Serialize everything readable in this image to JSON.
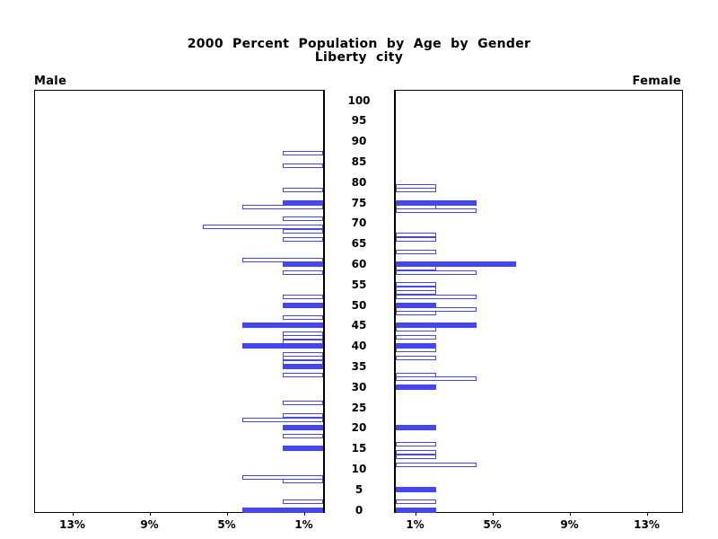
{
  "chart_data": {
    "type": "bar",
    "subtype": "population-pyramid",
    "title": "2000 Percent Population by Age by Gender",
    "subtitle": "Liberty city",
    "left_side_label": "Male",
    "right_side_label": "Female",
    "age_axis": {
      "min": 0,
      "max": 100,
      "step": 5,
      "tick_labels": [
        "0",
        "5",
        "10",
        "15",
        "20",
        "25",
        "30",
        "35",
        "40",
        "45",
        "50",
        "55",
        "60",
        "65",
        "70",
        "75",
        "80",
        "85",
        "90",
        "95",
        "100"
      ]
    },
    "x_axis": {
      "tick_percents": [
        1,
        5,
        9,
        13
      ],
      "tick_label_suffix": "%",
      "max_percent": 15
    },
    "colors": {
      "bar_blue": "#4646f0",
      "axis_black": "#000000",
      "background": "#ffffff"
    },
    "legend": {
      "solid_bar_meaning": "filled blue bar",
      "outline_bar_meaning": "white bar with blue outline"
    },
    "male_bars": [
      {
        "age": 87,
        "pct": 2.1,
        "solid": false
      },
      {
        "age": 84,
        "pct": 2.1,
        "solid": false
      },
      {
        "age": 78,
        "pct": 2.1,
        "solid": false
      },
      {
        "age": 75,
        "pct": 2.1,
        "solid": true
      },
      {
        "age": 74,
        "pct": 4.2,
        "solid": false
      },
      {
        "age": 71,
        "pct": 2.1,
        "solid": false
      },
      {
        "age": 69,
        "pct": 6.25,
        "solid": false
      },
      {
        "age": 68,
        "pct": 2.1,
        "solid": false
      },
      {
        "age": 66,
        "pct": 2.1,
        "solid": false
      },
      {
        "age": 61,
        "pct": 4.2,
        "solid": false
      },
      {
        "age": 60,
        "pct": 2.1,
        "solid": true
      },
      {
        "age": 58,
        "pct": 2.1,
        "solid": false
      },
      {
        "age": 52,
        "pct": 2.1,
        "solid": false
      },
      {
        "age": 50,
        "pct": 2.1,
        "solid": true
      },
      {
        "age": 47,
        "pct": 2.1,
        "solid": false
      },
      {
        "age": 45,
        "pct": 4.2,
        "solid": true
      },
      {
        "age": 43,
        "pct": 2.1,
        "solid": false
      },
      {
        "age": 42,
        "pct": 2.1,
        "solid": false
      },
      {
        "age": 41,
        "pct": 2.1,
        "solid": false
      },
      {
        "age": 40,
        "pct": 4.2,
        "solid": true
      },
      {
        "age": 38,
        "pct": 2.1,
        "solid": false
      },
      {
        "age": 37,
        "pct": 2.1,
        "solid": false
      },
      {
        "age": 36,
        "pct": 2.1,
        "solid": false
      },
      {
        "age": 35,
        "pct": 2.1,
        "solid": true
      },
      {
        "age": 33,
        "pct": 2.1,
        "solid": false
      },
      {
        "age": 26,
        "pct": 2.1,
        "solid": false
      },
      {
        "age": 23,
        "pct": 2.1,
        "solid": false
      },
      {
        "age": 22,
        "pct": 4.2,
        "solid": false
      },
      {
        "age": 20,
        "pct": 2.1,
        "solid": true
      },
      {
        "age": 18,
        "pct": 2.1,
        "solid": false
      },
      {
        "age": 15,
        "pct": 2.1,
        "solid": true
      },
      {
        "age": 8,
        "pct": 4.2,
        "solid": false
      },
      {
        "age": 7,
        "pct": 2.1,
        "solid": false
      },
      {
        "age": 2,
        "pct": 2.1,
        "solid": false
      },
      {
        "age": 0,
        "pct": 4.2,
        "solid": true
      }
    ],
    "female_bars": [
      {
        "age": 79,
        "pct": 2.1,
        "solid": false
      },
      {
        "age": 78,
        "pct": 2.1,
        "solid": false
      },
      {
        "age": 75,
        "pct": 4.2,
        "solid": true
      },
      {
        "age": 74,
        "pct": 2.1,
        "solid": false
      },
      {
        "age": 73,
        "pct": 4.2,
        "solid": false
      },
      {
        "age": 67,
        "pct": 2.1,
        "solid": false
      },
      {
        "age": 66,
        "pct": 2.1,
        "solid": false
      },
      {
        "age": 63,
        "pct": 2.1,
        "solid": false
      },
      {
        "age": 60,
        "pct": 6.25,
        "solid": true
      },
      {
        "age": 59,
        "pct": 2.1,
        "solid": false
      },
      {
        "age": 58,
        "pct": 4.2,
        "solid": false
      },
      {
        "age": 55,
        "pct": 2.1,
        "solid": false
      },
      {
        "age": 54,
        "pct": 2.1,
        "solid": false
      },
      {
        "age": 53,
        "pct": 2.1,
        "solid": false
      },
      {
        "age": 52,
        "pct": 4.2,
        "solid": false
      },
      {
        "age": 50,
        "pct": 2.1,
        "solid": true
      },
      {
        "age": 49,
        "pct": 4.2,
        "solid": false
      },
      {
        "age": 48,
        "pct": 2.1,
        "solid": false
      },
      {
        "age": 45,
        "pct": 4.2,
        "solid": true
      },
      {
        "age": 44,
        "pct": 2.1,
        "solid": false
      },
      {
        "age": 42,
        "pct": 2.1,
        "solid": false
      },
      {
        "age": 40,
        "pct": 2.1,
        "solid": true
      },
      {
        "age": 39,
        "pct": 2.1,
        "solid": false
      },
      {
        "age": 37,
        "pct": 2.1,
        "solid": false
      },
      {
        "age": 33,
        "pct": 2.1,
        "solid": false
      },
      {
        "age": 32,
        "pct": 4.2,
        "solid": false
      },
      {
        "age": 30,
        "pct": 2.1,
        "solid": true
      },
      {
        "age": 20,
        "pct": 2.1,
        "solid": true
      },
      {
        "age": 16,
        "pct": 2.1,
        "solid": false
      },
      {
        "age": 14,
        "pct": 2.1,
        "solid": false
      },
      {
        "age": 13,
        "pct": 2.1,
        "solid": false
      },
      {
        "age": 11,
        "pct": 4.2,
        "solid": false
      },
      {
        "age": 5,
        "pct": 2.1,
        "solid": true
      },
      {
        "age": 2,
        "pct": 2.1,
        "solid": false
      },
      {
        "age": 0,
        "pct": 2.1,
        "solid": true
      }
    ]
  }
}
